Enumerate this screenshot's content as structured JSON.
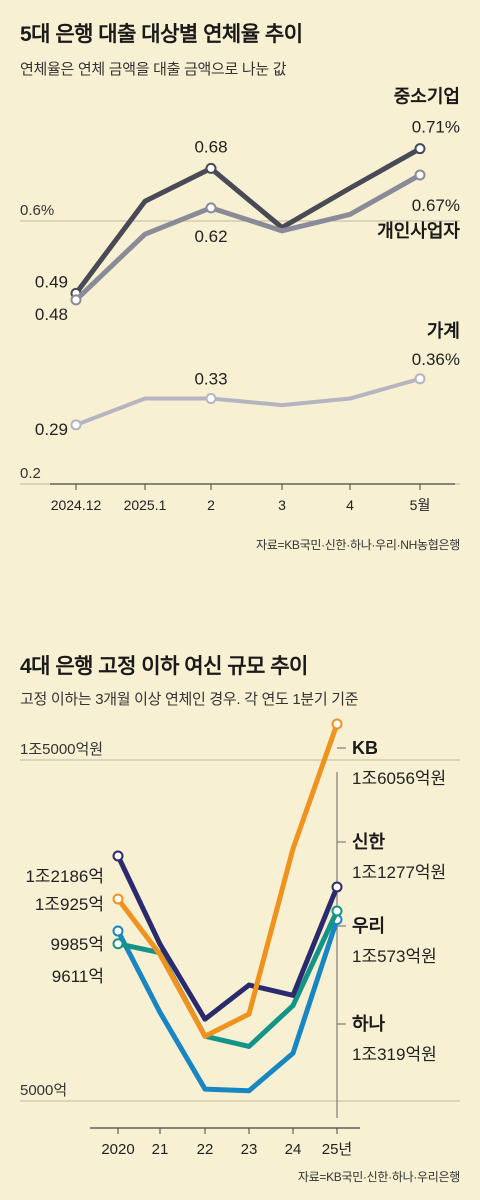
{
  "chart_data": [
    {
      "type": "line",
      "title": "5대 은행 대출 대상별 연체율 추이",
      "subtitle": "연체율은 연체 금액을 대출 금액으로 나눈 값",
      "source": "자료=KB국민·신한·하나·우리·NH농협은행",
      "categories": [
        "2024.12",
        "2025.1",
        "2",
        "3",
        "4",
        "5월"
      ],
      "y_ticks": [
        {
          "value": 0.6,
          "label": "0.6%"
        },
        {
          "value": 0.2,
          "label": "0.2"
        }
      ],
      "ylim": [
        0.2,
        0.75
      ],
      "grid": true,
      "series": [
        {
          "name": "중소기업",
          "color": "#484a55",
          "values": [
            0.49,
            0.63,
            0.68,
            0.59,
            0.65,
            0.71
          ],
          "labels": [
            {
              "index": 0,
              "text": "0.49"
            },
            {
              "index": 2,
              "text": "0.68"
            },
            {
              "index": 5,
              "text": "0.71%"
            }
          ]
        },
        {
          "name": "개인사업자",
          "color": "#8a8b98",
          "values": [
            0.48,
            0.58,
            0.62,
            0.585,
            0.61,
            0.67
          ],
          "labels": [
            {
              "index": 0,
              "text": "0.48"
            },
            {
              "index": 2,
              "text": "0.62"
            },
            {
              "index": 5,
              "text": "0.67%"
            }
          ]
        },
        {
          "name": "가계",
          "color": "#b4b5c0",
          "values": [
            0.29,
            0.33,
            0.33,
            0.32,
            0.33,
            0.36
          ],
          "labels": [
            {
              "index": 0,
              "text": "0.29"
            },
            {
              "index": 2,
              "text": "0.33"
            },
            {
              "index": 5,
              "text": "0.36%"
            }
          ]
        }
      ]
    },
    {
      "type": "line",
      "title": "4대 은행 고정 이하 여신 규모 추이",
      "subtitle": "고정 이하는 3개월 이상 연체인 경우. 각 연도 1분기 기준",
      "source": "자료=KB국민·신한·하나·우리은행",
      "categories": [
        "2020",
        "21",
        "22",
        "23",
        "24",
        "25년"
      ],
      "y_ticks": [
        {
          "value": 15000,
          "label": "1조5000억원"
        },
        {
          "value": 5000,
          "label": "5000억"
        }
      ],
      "ylim": [
        4900,
        16300
      ],
      "grid": true,
      "series": [
        {
          "name": "KB",
          "color": "#f0921e",
          "values": [
            10925,
            9300,
            6900,
            7550,
            12400,
            16056
          ],
          "start_label": "1조925억",
          "end_label": "1조6056억원"
        },
        {
          "name": "신한",
          "color": "#2c2a6e",
          "values": [
            12186,
            9600,
            7400,
            8400,
            8100,
            11277
          ],
          "start_label": "1조2186억",
          "end_label": "1조1277억원"
        },
        {
          "name": "우리",
          "color": "#149488",
          "values": [
            9611,
            9350,
            6900,
            6600,
            7800,
            10573
          ],
          "start_label": "9611억",
          "end_label": "1조573억원"
        },
        {
          "name": "하나",
          "color": "#1786c2",
          "values": [
            9985,
            7600,
            5350,
            5300,
            6400,
            10319
          ],
          "start_label": "9985억",
          "end_label": "1조319억원"
        }
      ]
    }
  ]
}
